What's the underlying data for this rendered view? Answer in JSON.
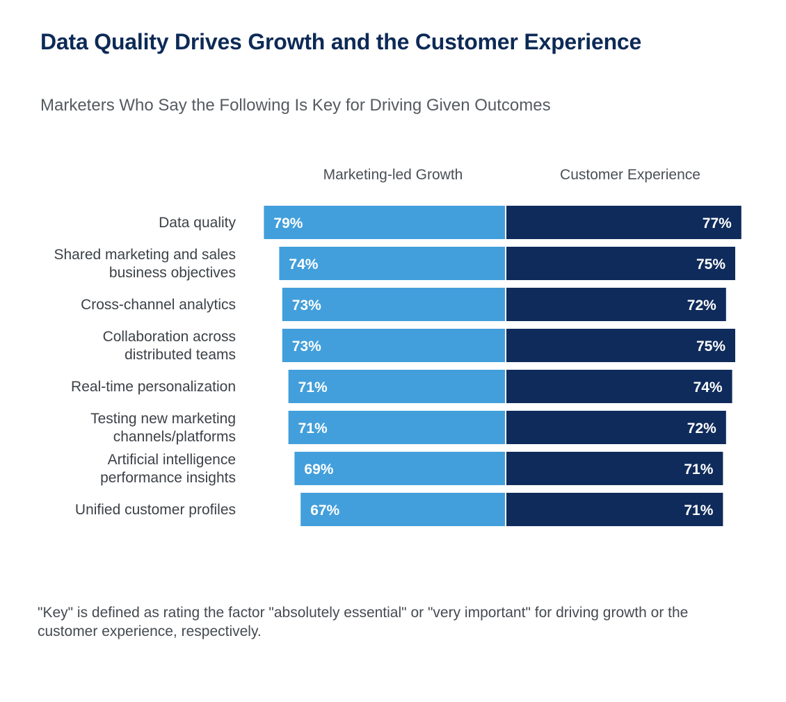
{
  "chart_data": {
    "type": "bar",
    "title": "Data Quality Drives Growth and the Customer Experience",
    "subtitle": "Marketers Who Say the Following Is Key for Driving Given Outcomes",
    "categories": [
      [
        "Data quality"
      ],
      [
        "Shared marketing and sales",
        "business objectives"
      ],
      [
        "Cross-channel analytics"
      ],
      [
        "Collaboration across",
        "distributed teams"
      ],
      [
        "Real-time personalization"
      ],
      [
        "Testing new marketing",
        "channels/platforms"
      ],
      [
        "Artificial intelligence",
        "performance insights"
      ],
      [
        "Unified customer profiles"
      ]
    ],
    "series": [
      {
        "name": "Marketing-led Growth",
        "values": [
          79,
          74,
          73,
          73,
          71,
          71,
          69,
          67
        ],
        "labels": [
          "79%",
          "74%",
          "73%",
          "73%",
          "71%",
          "71%",
          "69%",
          "67%"
        ],
        "color": "#429fdb"
      },
      {
        "name": "Customer Experience",
        "values": [
          77,
          75,
          72,
          75,
          74,
          72,
          71,
          71
        ],
        "labels": [
          "77%",
          "75%",
          "72%",
          "75%",
          "74%",
          "72%",
          "71%",
          "71%"
        ],
        "color": "#0f2b5b"
      }
    ],
    "unit": "%",
    "layout": "back-to-back horizontal bars",
    "legend": "column headers above bars",
    "grid": false
  },
  "footnote": "\"Key\" is defined as rating the factor \"absolutely essential\" or \"very important\" for driving growth or the customer experience, respectively."
}
